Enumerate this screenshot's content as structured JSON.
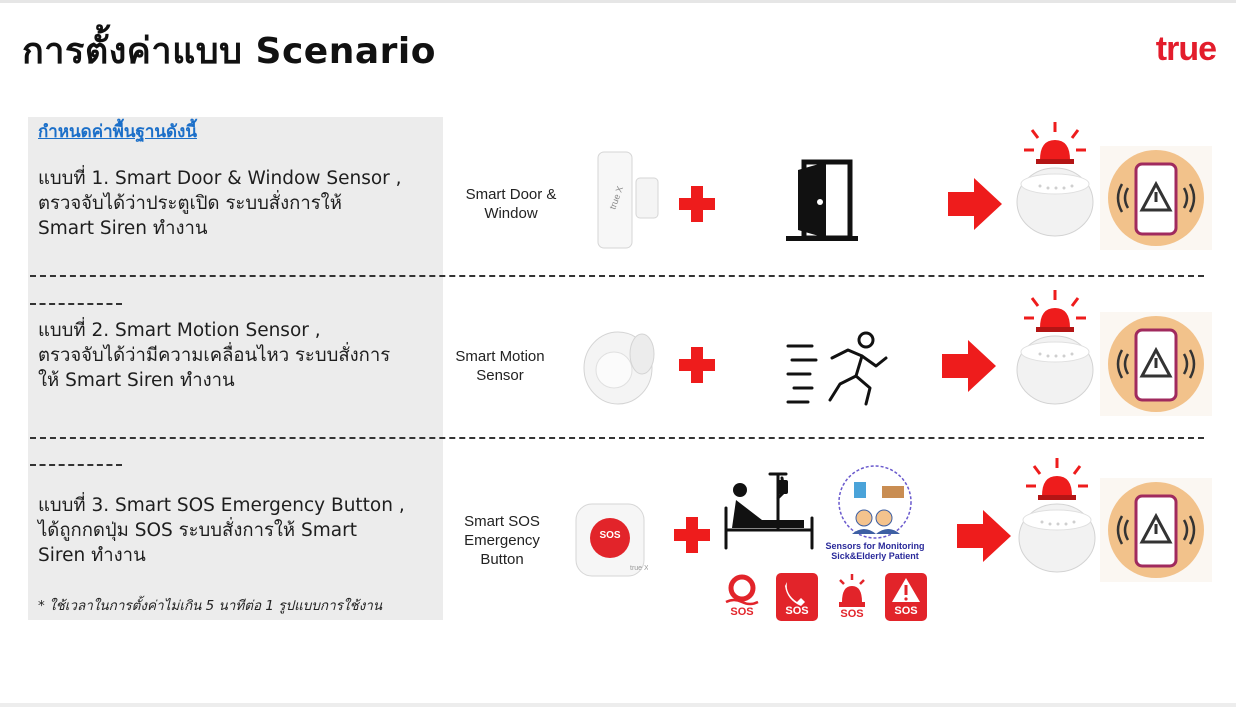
{
  "title": "การตั้งค่าแบบ Scenario",
  "brand": "true",
  "heading": "กำหนดค่าพื้นฐานดังนี้",
  "note": "* ใช้เวลาในการตั้งค่าไม่เกิน 5 นาทีต่อ 1 รูปแบบการใช้งาน",
  "scenarios": [
    {
      "description": "แบบที่ 1. Smart Door & Window Sensor ,\nตรวจจับได้ว่าประตูเปิด ระบบสั่งการให้\nSmart Siren ทำงาน",
      "device_label": "Smart Door &\nWindow"
    },
    {
      "description": "แบบที่ 2. Smart Motion Sensor ,\nตรวจจับได้ว่ามีความเคลื่อนไหว ระบบสั่งการ\nให้ Smart Siren ทำงาน",
      "device_label": "Smart Motion\nSensor"
    },
    {
      "description": "แบบที่ 3. Smart SOS Emergency Button ,\nได้ถูกกดปุ่ม SOS  ระบบสั่งการให้ Smart\nSiren ทำงาน",
      "device_label": "Smart SOS\nEmergency\nButton"
    }
  ],
  "sos_button_text": "SOS",
  "monitoring_label": "Sensors for Monitoring\nSick&Elderly Patient",
  "sos_icons": [
    {
      "name": "lifebuoy",
      "text": "SOS"
    },
    {
      "name": "phone",
      "text": "SOS"
    },
    {
      "name": "siren",
      "text": "SOS"
    },
    {
      "name": "warning",
      "text": "SOS"
    }
  ],
  "colors": {
    "brand": "#e31d2c",
    "accent_red": "#ee1c1c",
    "link_blue": "#1b6fc9",
    "panel": "#ececec",
    "phone_circle": "#f2c28b"
  }
}
